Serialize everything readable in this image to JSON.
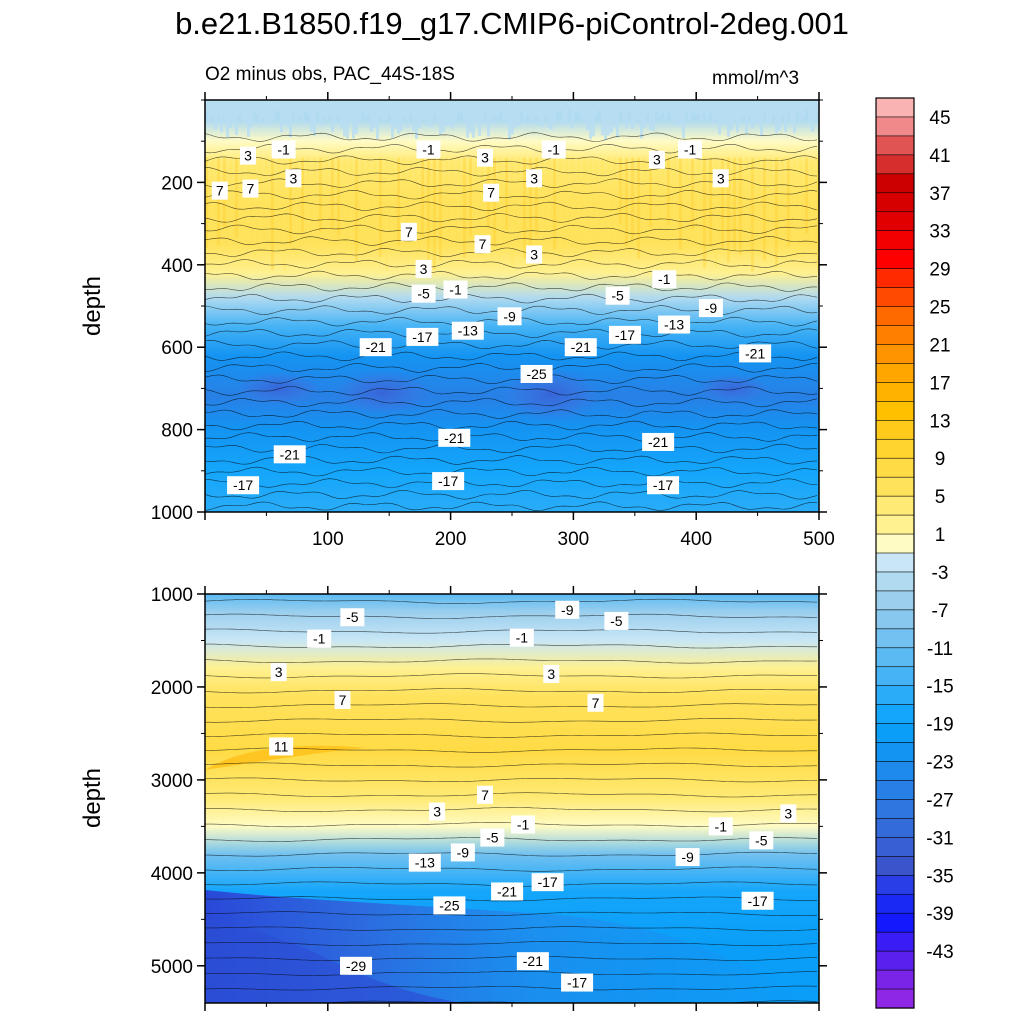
{
  "title": "b.e21.B1850.f19_g17.CMIP6-piControl-2deg.001",
  "subtitle_left": "O2 minus obs, PAC_44S-18S",
  "subtitle_right": "mmol/m^3",
  "chart_data": [
    {
      "type": "heatmap",
      "panel": "upper",
      "xlabel": "",
      "ylabel": "depth",
      "xlim": [
        0,
        500
      ],
      "ylim": [
        1000,
        0
      ],
      "x_ticks": [
        100,
        200,
        300,
        400,
        500
      ],
      "y_ticks": [
        200,
        400,
        600,
        800,
        1000
      ],
      "depth_profile": [
        {
          "depth": 0,
          "value": -2
        },
        {
          "depth": 50,
          "value": -2
        },
        {
          "depth": 100,
          "value": 1
        },
        {
          "depth": 150,
          "value": 5
        },
        {
          "depth": 250,
          "value": 7
        },
        {
          "depth": 350,
          "value": 7
        },
        {
          "depth": 420,
          "value": 3
        },
        {
          "depth": 480,
          "value": -3
        },
        {
          "depth": 550,
          "value": -13
        },
        {
          "depth": 620,
          "value": -20
        },
        {
          "depth": 720,
          "value": -24
        },
        {
          "depth": 800,
          "value": -21
        },
        {
          "depth": 900,
          "value": -17
        },
        {
          "depth": 1000,
          "value": -15
        }
      ],
      "contour_labels": [
        {
          "text": "3",
          "x": 35,
          "depth": 135
        },
        {
          "text": "-1",
          "x": 64,
          "depth": 120
        },
        {
          "text": "-1",
          "x": 182,
          "depth": 120
        },
        {
          "text": "3",
          "x": 228,
          "depth": 140
        },
        {
          "text": "-1",
          "x": 284,
          "depth": 120
        },
        {
          "text": "3",
          "x": 368,
          "depth": 145
        },
        {
          "text": "-1",
          "x": 395,
          "depth": 120
        },
        {
          "text": "7",
          "x": 12,
          "depth": 220
        },
        {
          "text": "7",
          "x": 37,
          "depth": 215
        },
        {
          "text": "3",
          "x": 72,
          "depth": 190
        },
        {
          "text": "3",
          "x": 268,
          "depth": 190
        },
        {
          "text": "7",
          "x": 233,
          "depth": 225
        },
        {
          "text": "3",
          "x": 420,
          "depth": 190
        },
        {
          "text": "7",
          "x": 166,
          "depth": 320
        },
        {
          "text": "7",
          "x": 226,
          "depth": 350
        },
        {
          "text": "3",
          "x": 268,
          "depth": 375
        },
        {
          "text": "3",
          "x": 178,
          "depth": 410
        },
        {
          "text": "-5",
          "x": 178,
          "depth": 470
        },
        {
          "text": "-1",
          "x": 204,
          "depth": 460
        },
        {
          "text": "-5",
          "x": 336,
          "depth": 475
        },
        {
          "text": "-1",
          "x": 374,
          "depth": 435
        },
        {
          "text": "-9",
          "x": 248,
          "depth": 525
        },
        {
          "text": "-9",
          "x": 412,
          "depth": 505
        },
        {
          "text": "-13",
          "x": 214,
          "depth": 560
        },
        {
          "text": "-13",
          "x": 382,
          "depth": 545
        },
        {
          "text": "-17",
          "x": 177,
          "depth": 575
        },
        {
          "text": "-17",
          "x": 342,
          "depth": 570
        },
        {
          "text": "-21",
          "x": 139,
          "depth": 600
        },
        {
          "text": "-21",
          "x": 306,
          "depth": 600
        },
        {
          "text": "-21",
          "x": 448,
          "depth": 615
        },
        {
          "text": "-25",
          "x": 270,
          "depth": 665
        },
        {
          "text": "-21",
          "x": 203,
          "depth": 820
        },
        {
          "text": "-21",
          "x": 369,
          "depth": 830
        },
        {
          "text": "-21",
          "x": 69,
          "depth": 860
        },
        {
          "text": "-17",
          "x": 31,
          "depth": 935
        },
        {
          "text": "-17",
          "x": 198,
          "depth": 925
        },
        {
          "text": "-17",
          "x": 373,
          "depth": 935
        }
      ]
    },
    {
      "type": "heatmap",
      "panel": "lower",
      "xlabel": "",
      "ylabel": "depth",
      "xlim": [
        0,
        500
      ],
      "ylim": [
        5400,
        1000
      ],
      "y_ticks": [
        1000,
        2000,
        3000,
        4000,
        5000
      ],
      "depth_profile": [
        {
          "depth": 1000,
          "value": -11
        },
        {
          "depth": 1200,
          "value": -5
        },
        {
          "depth": 1500,
          "value": 0
        },
        {
          "depth": 1800,
          "value": 3
        },
        {
          "depth": 2100,
          "value": 7
        },
        {
          "depth": 2700,
          "value": 9
        },
        {
          "depth": 3200,
          "value": 6
        },
        {
          "depth": 3500,
          "value": 1
        },
        {
          "depth": 3800,
          "value": -8
        },
        {
          "depth": 4200,
          "value": -16
        },
        {
          "depth": 4800,
          "value": -19
        },
        {
          "depth": 5400,
          "value": -19
        }
      ],
      "contour_labels": [
        {
          "text": "-5",
          "x": 120,
          "depth": 1250
        },
        {
          "text": "-9",
          "x": 295,
          "depth": 1170
        },
        {
          "text": "-5",
          "x": 335,
          "depth": 1290
        },
        {
          "text": "-1",
          "x": 93,
          "depth": 1480
        },
        {
          "text": "-1",
          "x": 258,
          "depth": 1470
        },
        {
          "text": "3",
          "x": 60,
          "depth": 1840
        },
        {
          "text": "3",
          "x": 282,
          "depth": 1860
        },
        {
          "text": "7",
          "x": 112,
          "depth": 2140
        },
        {
          "text": "7",
          "x": 318,
          "depth": 2170
        },
        {
          "text": "11",
          "x": 62,
          "depth": 2640
        },
        {
          "text": "7",
          "x": 228,
          "depth": 3160
        },
        {
          "text": "3",
          "x": 189,
          "depth": 3340
        },
        {
          "text": "3",
          "x": 475,
          "depth": 3360
        },
        {
          "text": "-1",
          "x": 259,
          "depth": 3480
        },
        {
          "text": "-1",
          "x": 420,
          "depth": 3500
        },
        {
          "text": "-5",
          "x": 234,
          "depth": 3620
        },
        {
          "text": "-5",
          "x": 453,
          "depth": 3650
        },
        {
          "text": "-9",
          "x": 210,
          "depth": 3780
        },
        {
          "text": "-9",
          "x": 393,
          "depth": 3830
        },
        {
          "text": "-13",
          "x": 179,
          "depth": 3890
        },
        {
          "text": "-17",
          "x": 279,
          "depth": 4100
        },
        {
          "text": "-17",
          "x": 450,
          "depth": 4300
        },
        {
          "text": "-21",
          "x": 246,
          "depth": 4200
        },
        {
          "text": "-25",
          "x": 199,
          "depth": 4350
        },
        {
          "text": "-29",
          "x": 123,
          "depth": 5000
        },
        {
          "text": "-21",
          "x": 267,
          "depth": 4950
        },
        {
          "text": "-17",
          "x": 303,
          "depth": 5180
        }
      ]
    }
  ],
  "colorbar": {
    "label_values": [
      45,
      41,
      37,
      33,
      29,
      25,
      21,
      17,
      13,
      9,
      5,
      1,
      -3,
      -7,
      -11,
      -15,
      -19,
      -23,
      -27,
      -31,
      -35,
      -39,
      -43
    ],
    "colors": [
      "#f9b3b3",
      "#f08a8a",
      "#e05454",
      "#d62d2d",
      "#cc0000",
      "#d60000",
      "#e00000",
      "#f20000",
      "#ff0000",
      "#ff2a00",
      "#ff4a00",
      "#ff6a00",
      "#ff8000",
      "#ff9400",
      "#ffa600",
      "#ffb300",
      "#ffc000",
      "#ffca1a",
      "#ffd42e",
      "#ffdb45",
      "#ffe25c",
      "#ffea75",
      "#fff190",
      "#fffbc4",
      "#c8e6f5",
      "#b0daf0",
      "#9ccfee",
      "#88c8ee",
      "#72c1f0",
      "#5cbaf2",
      "#45b3f5",
      "#2aacf8",
      "#14a6fb",
      "#0a9ef8",
      "#1494f2",
      "#1e8aec",
      "#2880e6",
      "#2f76e0",
      "#346bda",
      "#3860d4",
      "#3a54cc",
      "#2a3ee8",
      "#1a2af2",
      "#1418fc",
      "#3a1cf4",
      "#5a20ee",
      "#7a24e8",
      "#8e28e6"
    ]
  }
}
